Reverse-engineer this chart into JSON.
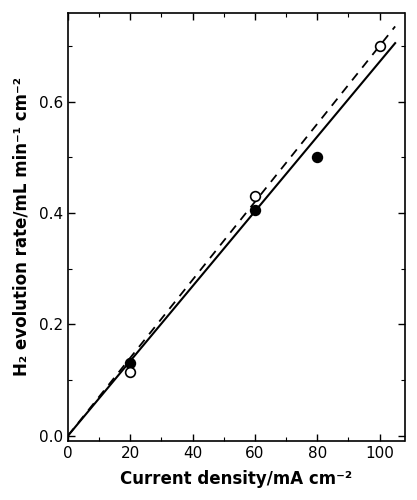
{
  "open_circles": {
    "x": [
      20,
      60,
      100
    ],
    "y": [
      0.115,
      0.43,
      0.7
    ]
  },
  "filled_circles": {
    "x": [
      20,
      60,
      80
    ],
    "y": [
      0.13,
      0.405,
      0.5
    ]
  },
  "solid_line": {
    "x": [
      0,
      105
    ],
    "y": [
      0.0,
      0.705
    ]
  },
  "dashed_line": {
    "x": [
      0,
      105
    ],
    "y": [
      0.0,
      0.735
    ]
  },
  "xlim": [
    0,
    108
  ],
  "ylim": [
    -0.01,
    0.76
  ],
  "xticks": [
    0,
    20,
    40,
    60,
    80,
    100
  ],
  "yticks": [
    0,
    0.2,
    0.4,
    0.6
  ],
  "xlabel": "Current density/mA cm⁻²",
  "ylabel": "H₂ evolution rate/mL min⁻¹ cm⁻²",
  "marker_size": 7,
  "line_color": "#000000",
  "background_color": "#ffffff"
}
